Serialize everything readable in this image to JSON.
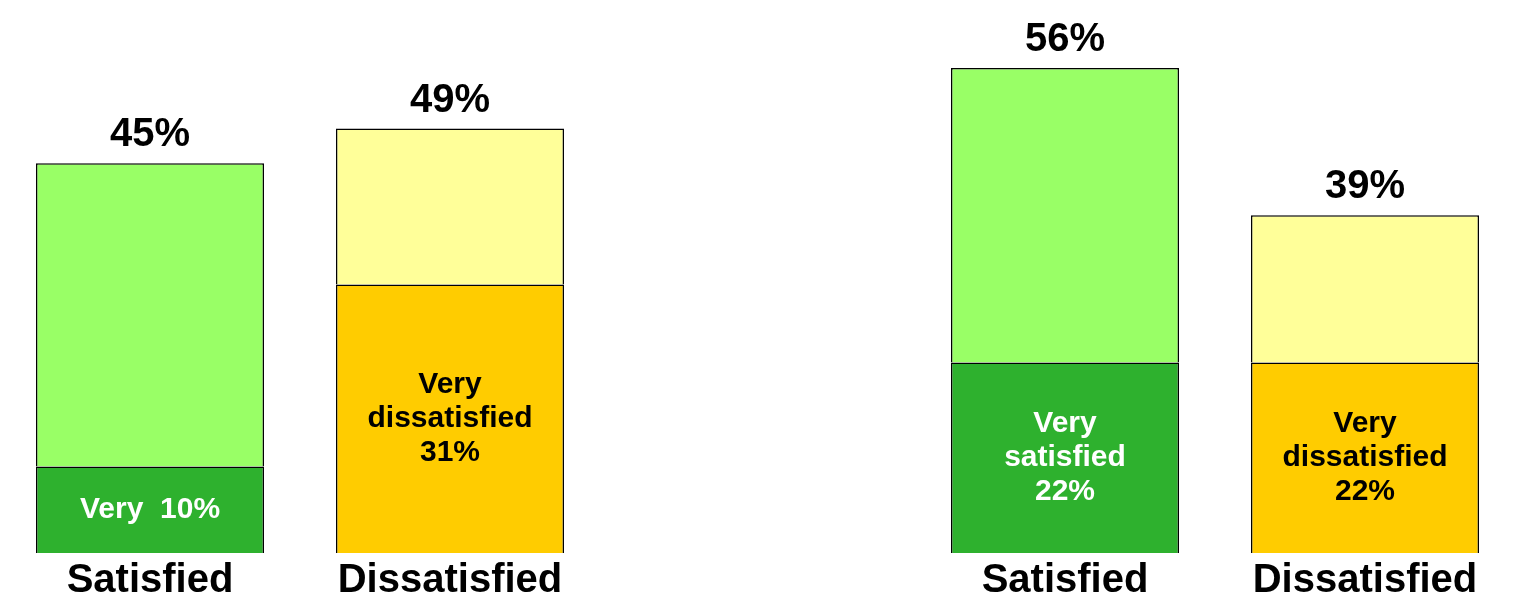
{
  "chart_data": [
    {
      "type": "bar",
      "stacked": true,
      "legend": false,
      "categories": [
        "Satisfied",
        "Dissatisfied"
      ],
      "series": [
        {
          "colors": [
            "#2eb12e",
            "#ffcc00"
          ],
          "values": [
            10,
            31
          ],
          "value_labels": [
            "Very  10%",
            "Very dissatisfied 31%"
          ]
        },
        {
          "colors": [
            "#99ff66",
            "#ffff99"
          ],
          "values": [
            35,
            18
          ]
        }
      ],
      "totals": [
        "45%",
        "49%"
      ]
    },
    {
      "type": "bar",
      "stacked": true,
      "legend": false,
      "categories": [
        "Satisfied",
        "Dissatisfied"
      ],
      "series": [
        {
          "colors": [
            "#2eb12e",
            "#ffcc00"
          ],
          "values": [
            22,
            22
          ],
          "value_labels": [
            "Very satisfied 22%",
            "Very dissatisfied 22%"
          ]
        },
        {
          "colors": [
            "#99ff66",
            "#ffff99"
          ],
          "values": [
            34,
            17
          ]
        }
      ],
      "totals": [
        "56%",
        "39%"
      ]
    }
  ]
}
